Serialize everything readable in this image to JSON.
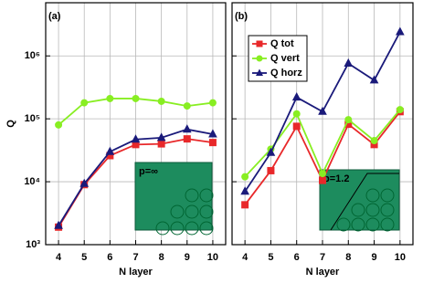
{
  "chart_data": [
    {
      "type": "line",
      "title": "(a)",
      "xlabel": "N layer",
      "ylabel": "Q",
      "annotation": "p=∞",
      "x": [
        4,
        5,
        6,
        7,
        8,
        9,
        10
      ],
      "xlim": [
        3.5,
        10.5
      ],
      "xticks": [
        4,
        5,
        6,
        7,
        8,
        9,
        10
      ],
      "ylim": [
        1000,
        7000000
      ],
      "log_y": true,
      "grid": true,
      "yticks": [
        {
          "value": 1000,
          "label": "10³"
        },
        {
          "value": 10000,
          "label": "10⁴"
        },
        {
          "value": 100000,
          "label": "10⁵"
        },
        {
          "value": 1000000,
          "label": "10⁶"
        }
      ],
      "series": [
        {
          "color": "#e8282a",
          "marker": "square",
          "values": [
            1900,
            9000,
            26000,
            39000,
            40000,
            48000,
            42000
          ]
        },
        {
          "color": "#88ee22",
          "marker": "circle",
          "values": [
            80000,
            180000,
            210000,
            210000,
            190000,
            160000,
            180000
          ]
        },
        {
          "color": "#1a1a7a",
          "marker": "triangle",
          "values": [
            2000,
            9300,
            30000,
            47000,
            50000,
            68000,
            57000
          ]
        }
      ]
    },
    {
      "type": "line",
      "title": "(b)",
      "xlabel": "N layer",
      "annotation": "p=1.2",
      "legend": "upper left",
      "x": [
        4,
        5,
        6,
        7,
        8,
        9,
        10
      ],
      "xlim": [
        3.5,
        10.5
      ],
      "xticks": [
        4,
        5,
        6,
        7,
        8,
        9,
        10
      ],
      "ylim": [
        1000,
        7000000
      ],
      "log_y": true,
      "grid": true,
      "series": [
        {
          "name": "Q tot",
          "color": "#e8282a",
          "marker": "square",
          "values": [
            4300,
            15000,
            76000,
            10500,
            82000,
            39000,
            130000
          ]
        },
        {
          "name": "Q vert",
          "color": "#88ee22",
          "marker": "circle",
          "values": [
            12000,
            33000,
            120000,
            13500,
            97000,
            45000,
            140000
          ]
        },
        {
          "name": "Q horz",
          "color": "#1a1a7a",
          "marker": "triangle",
          "values": [
            7000,
            29000,
            220000,
            130000,
            760000,
            410000,
            2400000
          ]
        }
      ]
    }
  ]
}
